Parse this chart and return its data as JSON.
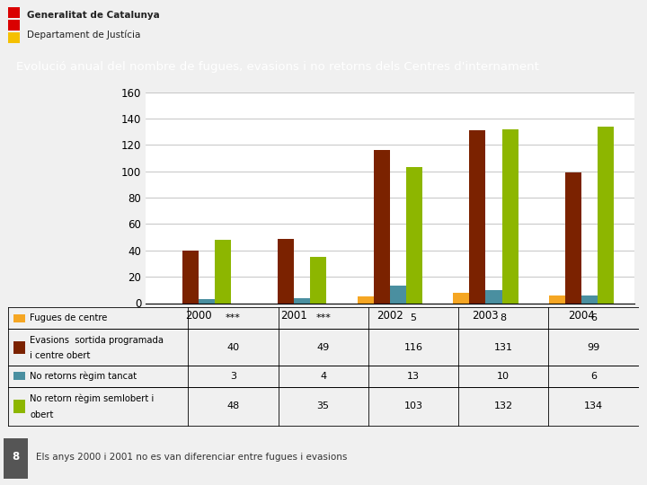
{
  "title": "Evolució anual del nombre de fugues, evasions i no retorns dels Centres d'internament",
  "title_bg": "#4bbfcf",
  "title_color": "white",
  "years": [
    "2000",
    "2001",
    "2002",
    "2003",
    "2004"
  ],
  "series_labels": [
    "Fugues de centre",
    "Evasions  sortida programada\ni centre obert",
    "No retorns règim tancat",
    "No retorn règim semlobert i\nobert"
  ],
  "series_values": [
    [
      0,
      0,
      5,
      8,
      6
    ],
    [
      40,
      49,
      116,
      131,
      99
    ],
    [
      3,
      4,
      13,
      10,
      6
    ],
    [
      48,
      35,
      103,
      132,
      134
    ]
  ],
  "series_colors": [
    "#f5a623",
    "#7b2200",
    "#4a8fa0",
    "#8db600"
  ],
  "table_rows": [
    [
      "***",
      "***",
      "5",
      "8",
      "6"
    ],
    [
      "40",
      "49",
      "116",
      "131",
      "99"
    ],
    [
      "3",
      "4",
      "13",
      "10",
      "6"
    ],
    [
      "48",
      "35",
      "103",
      "132",
      "134"
    ]
  ],
  "ylim": [
    0,
    160
  ],
  "yticks": [
    0,
    20,
    40,
    60,
    80,
    100,
    120,
    140,
    160
  ],
  "footnote": "Els anys 2000 i 2001 no es van diferenciar entre fugues i evasions",
  "page_num": "8",
  "bg_color": "#f0f0f0",
  "header_bg": "#d5d5d5",
  "logo_line1": "Generalitat de Catalunya",
  "logo_line2": "Departament de Justícia",
  "bar_width": 0.17
}
